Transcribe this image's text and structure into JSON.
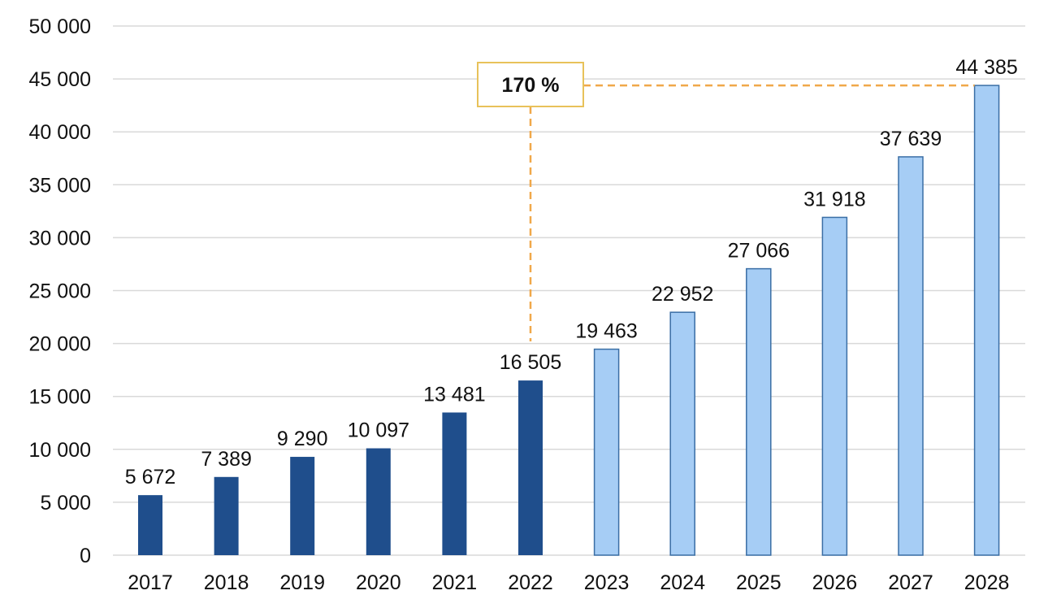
{
  "chart_data": {
    "type": "bar",
    "title": "",
    "xlabel": "",
    "ylabel": "",
    "categories": [
      "2017",
      "2018",
      "2019",
      "2020",
      "2021",
      "2022",
      "2023",
      "2024",
      "2025",
      "2026",
      "2027",
      "2028"
    ],
    "values": [
      5672,
      7389,
      9290,
      10097,
      13481,
      16505,
      19463,
      22952,
      27066,
      31918,
      37639,
      44385
    ],
    "data_labels": [
      "5 672",
      "7 389",
      "9 290",
      "10 097",
      "13 481",
      "16 505",
      "19 463",
      "22 952",
      "27 066",
      "31 918",
      "37 639",
      "44 385"
    ],
    "series_kind": [
      "actual",
      "actual",
      "actual",
      "actual",
      "actual",
      "actual",
      "forecast",
      "forecast",
      "forecast",
      "forecast",
      "forecast",
      "forecast"
    ],
    "ylim": [
      0,
      50000
    ],
    "yticks": [
      0,
      5000,
      10000,
      15000,
      20000,
      25000,
      30000,
      35000,
      40000,
      45000,
      50000
    ],
    "ytick_labels": [
      "0",
      "5 000",
      "10 000",
      "15 000",
      "20 000",
      "25 000",
      "30 000",
      "35 000",
      "40 000",
      "45 000",
      "50 000"
    ],
    "grid": true,
    "legend": null,
    "annotation": {
      "text": "170 %",
      "from_category": "2022",
      "to_category": "2028",
      "style": "dashed connector"
    },
    "colors": {
      "actual": "#1f4e8c",
      "forecast_fill": "#a6cdf5",
      "forecast_stroke": "#3a6ea5",
      "grid": "#d9d9d9",
      "annotation_line": "#f0a84a",
      "annotation_box": "#e8c25a"
    }
  }
}
